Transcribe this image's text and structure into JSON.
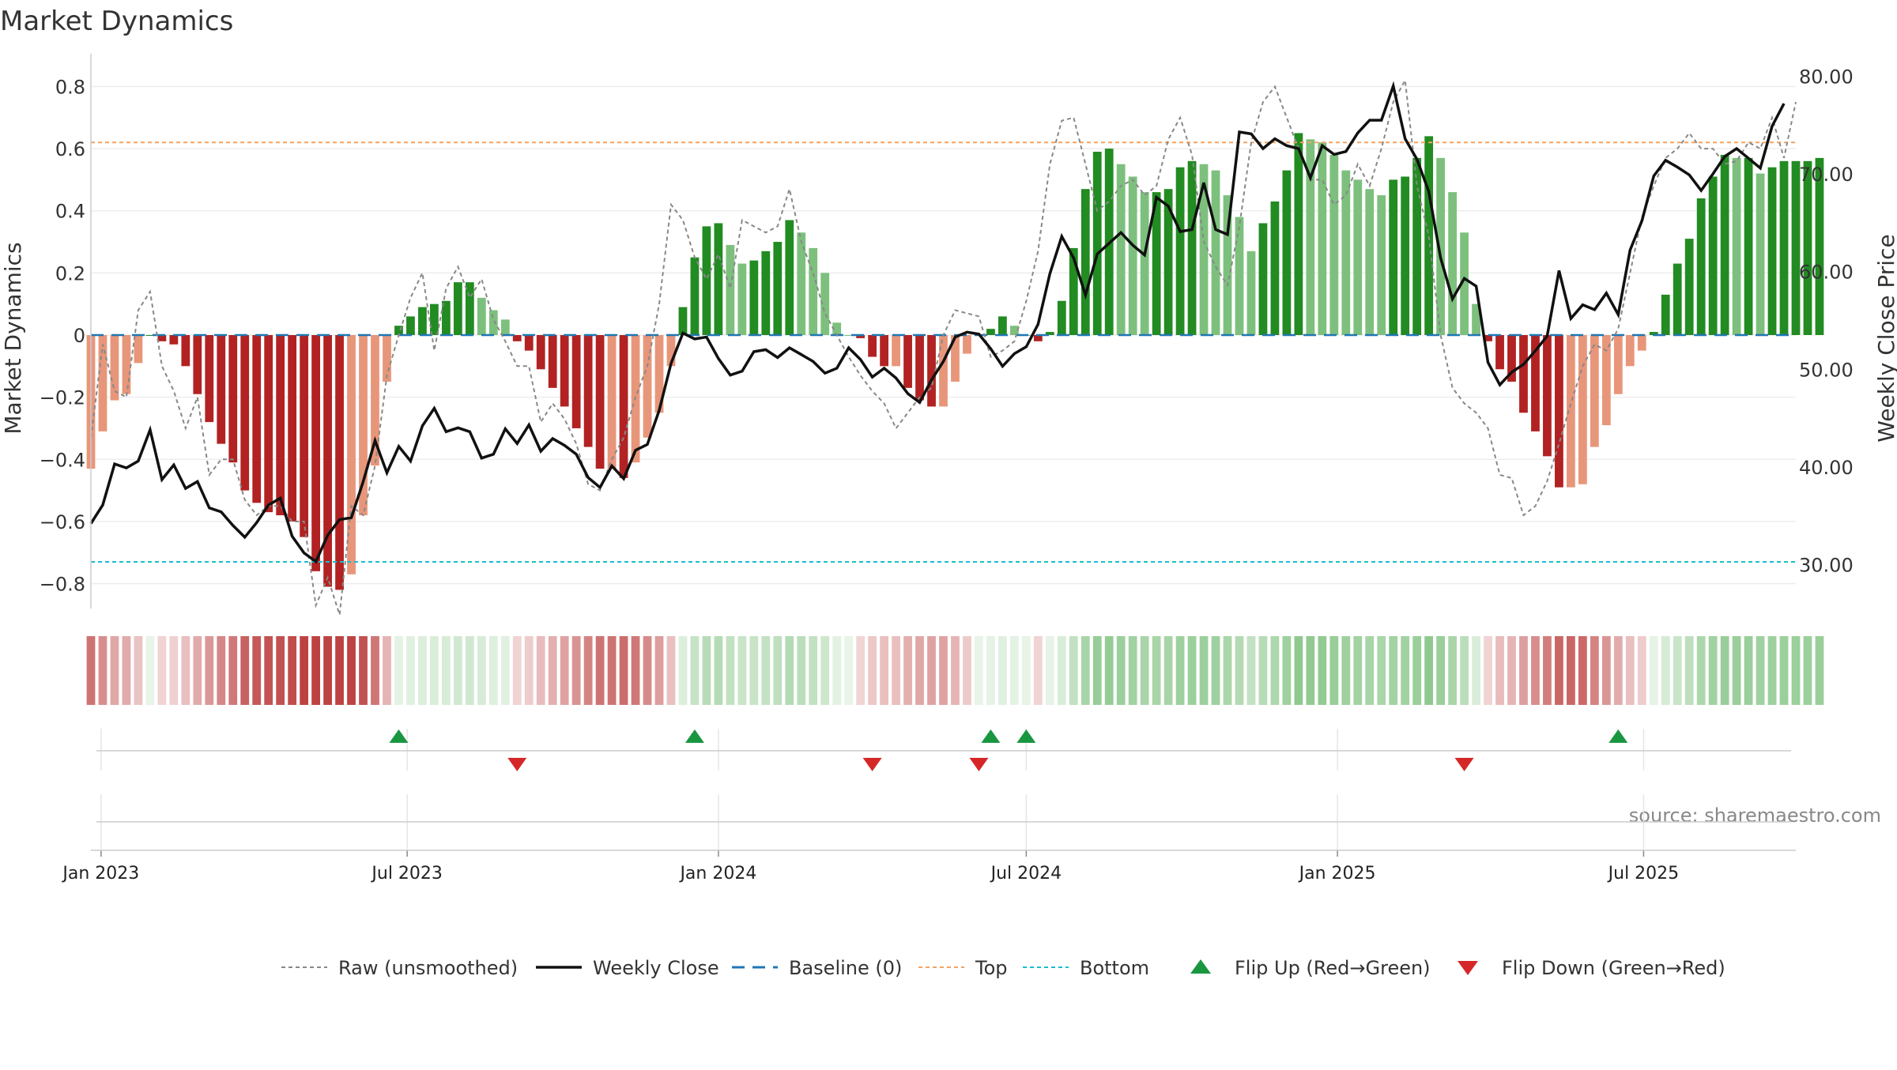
{
  "title": "Market Dynamics",
  "source": "source: sharemaestro.com",
  "left_axis": {
    "label": "Market Dynamics",
    "ylim": [
      -0.88,
      0.88
    ],
    "ticks": [
      0.8,
      0.6,
      0.4,
      0.2,
      0,
      -0.2,
      -0.4,
      -0.6,
      -0.8
    ],
    "tick_labels": [
      "0.8",
      "0.6",
      "0.4",
      "0.2",
      "0",
      "−0.2",
      "−0.4",
      "−0.6",
      "−0.8"
    ]
  },
  "right_axis": {
    "label": "Weekly Close Price",
    "ylim": [
      25.5,
      81.5
    ],
    "ticks": [
      80,
      70,
      60,
      50,
      40,
      30
    ],
    "tick_labels": [
      "80.00",
      "70.00",
      "60.00",
      "50.00",
      "40.00",
      "30.00"
    ]
  },
  "x_axis": {
    "start": "2022-12-26",
    "end": "2025-09-29",
    "ticks": [
      "2023-01-01",
      "2023-07-01",
      "2024-01-01",
      "2024-07-01",
      "2025-01-01",
      "2025-07-01"
    ],
    "tick_labels": [
      "Jan 2023",
      "Jul 2023",
      "Jan 2024",
      "Jul 2024",
      "Jan 2025",
      "Jul 2025"
    ]
  },
  "reference_lines": {
    "top": 0.62,
    "bottom": -0.73,
    "baseline": 0
  },
  "colors": {
    "strong_red": "#b22222",
    "weak_red": "#e8967a",
    "strong_green": "#228b22",
    "weak_green": "#7dc07d",
    "raw": "#888888",
    "close": "#111111",
    "baseline": "#1f77b4",
    "top": "#f4a261",
    "bottom": "#17becf",
    "flip_up": "#1a9641",
    "flip_down": "#d62728"
  },
  "chart_data": {
    "type": "bar",
    "series": [
      {
        "name": "Market Dynamics (smoothed)",
        "kind": "bar",
        "start_date": "2022-12-26",
        "interval_days": 7,
        "values": [
          -0.43,
          -0.31,
          -0.21,
          -0.19,
          -0.09,
          0.0,
          -0.02,
          -0.03,
          -0.1,
          -0.19,
          -0.28,
          -0.35,
          -0.41,
          -0.5,
          -0.54,
          -0.57,
          -0.58,
          -0.6,
          -0.65,
          -0.76,
          -0.81,
          -0.82,
          -0.77,
          -0.58,
          -0.42,
          -0.15,
          0.03,
          0.06,
          0.09,
          0.1,
          0.11,
          0.17,
          0.17,
          0.12,
          0.08,
          0.05,
          -0.02,
          -0.05,
          -0.11,
          -0.17,
          -0.23,
          -0.3,
          -0.36,
          -0.43,
          -0.43,
          -0.46,
          -0.41,
          -0.33,
          -0.25,
          -0.1,
          0.09,
          0.25,
          0.35,
          0.36,
          0.29,
          0.23,
          0.24,
          0.27,
          0.3,
          0.37,
          0.33,
          0.28,
          0.2,
          0.04,
          0.0,
          -0.01,
          -0.07,
          -0.1,
          -0.1,
          -0.17,
          -0.21,
          -0.23,
          -0.23,
          -0.15,
          -0.06,
          0.0,
          0.02,
          0.06,
          0.03,
          0.0,
          -0.02,
          0.01,
          0.11,
          0.28,
          0.47,
          0.59,
          0.6,
          0.55,
          0.51,
          0.46,
          0.46,
          0.47,
          0.54,
          0.56,
          0.55,
          0.53,
          0.45,
          0.38,
          0.27,
          0.36,
          0.43,
          0.53,
          0.65,
          0.63,
          0.62,
          0.58,
          0.53,
          0.5,
          0.47,
          0.45,
          0.5,
          0.51,
          0.57,
          0.64,
          0.57,
          0.46,
          0.33,
          0.1,
          -0.02,
          -0.11,
          -0.15,
          -0.25,
          -0.31,
          -0.39,
          -0.49,
          -0.49,
          -0.48,
          -0.36,
          -0.29,
          -0.19,
          -0.1,
          -0.05,
          0.01,
          0.13,
          0.23,
          0.31,
          0.44,
          0.51,
          0.58,
          0.57,
          0.57,
          0.52,
          0.54,
          0.56,
          0.56,
          0.56,
          0.57
        ]
      },
      {
        "name": "Raw (unsmoothed)",
        "kind": "line",
        "start_date": "2022-12-26",
        "interval_days": 7,
        "values": [
          -0.33,
          -0.03,
          -0.18,
          -0.2,
          0.08,
          0.14,
          -0.1,
          -0.18,
          -0.3,
          -0.2,
          -0.45,
          -0.4,
          -0.4,
          -0.53,
          -0.58,
          -0.55,
          -0.55,
          -0.6,
          -0.6,
          -0.87,
          -0.78,
          -0.9,
          -0.55,
          -0.58,
          -0.42,
          -0.13,
          0.0,
          0.12,
          0.2,
          -0.05,
          0.15,
          0.22,
          0.12,
          0.18,
          0.05,
          -0.02,
          -0.1,
          -0.1,
          -0.28,
          -0.22,
          -0.27,
          -0.35,
          -0.48,
          -0.5,
          -0.4,
          -0.33,
          -0.2,
          -0.1,
          0.1,
          0.42,
          0.37,
          0.25,
          0.18,
          0.26,
          0.15,
          0.37,
          0.35,
          0.33,
          0.35,
          0.47,
          0.3,
          0.2,
          0.07,
          0.0,
          -0.07,
          -0.13,
          -0.18,
          -0.22,
          -0.3,
          -0.25,
          -0.2,
          -0.17,
          0.0,
          0.08,
          0.07,
          0.06,
          -0.07,
          -0.05,
          -0.02,
          0.11,
          0.27,
          0.55,
          0.69,
          0.7,
          0.55,
          0.4,
          0.43,
          0.48,
          0.5,
          0.45,
          0.48,
          0.63,
          0.7,
          0.58,
          0.3,
          0.22,
          0.16,
          0.35,
          0.62,
          0.75,
          0.8,
          0.7,
          0.6,
          0.5,
          0.5,
          0.42,
          0.45,
          0.55,
          0.48,
          0.6,
          0.75,
          0.82,
          0.48,
          0.32,
          0.0,
          -0.17,
          -0.22,
          -0.25,
          -0.3,
          -0.45,
          -0.46,
          -0.58,
          -0.55,
          -0.47,
          -0.35,
          -0.22,
          -0.1,
          -0.03,
          -0.05,
          0.02,
          0.2,
          0.38,
          0.48,
          0.57,
          0.6,
          0.65,
          0.6,
          0.6,
          0.55,
          0.56,
          0.62,
          0.6,
          0.7,
          0.57,
          0.75
        ]
      },
      {
        "name": "Weekly Close",
        "kind": "line",
        "axis": "right",
        "start_date": "2022-12-26",
        "interval_days": 7,
        "values": [
          34.2,
          36.1,
          40.3,
          39.9,
          40.6,
          43.8,
          38.7,
          40.2,
          37.8,
          38.5,
          35.8,
          35.4,
          34.0,
          32.8,
          34.3,
          36.1,
          36.8,
          32.9,
          31.2,
          30.3,
          33.0,
          34.6,
          34.8,
          38.5,
          42.7,
          39.4,
          42.1,
          40.6,
          44.2,
          46.0,
          43.6,
          44.0,
          43.6,
          40.9,
          41.3,
          43.9,
          42.4,
          44.3,
          41.6,
          42.9,
          42.2,
          41.3,
          38.9,
          37.9,
          40.1,
          38.8,
          41.7,
          42.3,
          45.8,
          50.6,
          53.7,
          53.1,
          53.3,
          51.1,
          49.4,
          49.8,
          51.8,
          52.0,
          51.2,
          52.2,
          51.5,
          50.8,
          49.6,
          50.1,
          52.2,
          51.0,
          49.2,
          50.1,
          49.1,
          47.5,
          46.6,
          48.9,
          50.8,
          53.3,
          53.8,
          53.6,
          52.1,
          50.3,
          51.6,
          52.3,
          54.6,
          59.8,
          63.6,
          61.4,
          57.6,
          61.8,
          62.9,
          64.0,
          62.7,
          61.7,
          67.6,
          66.7,
          64.1,
          64.3,
          69.1,
          64.3,
          63.8,
          74.3,
          74.1,
          72.6,
          73.6,
          72.9,
          72.6,
          69.6,
          72.9,
          72.0,
          72.3,
          74.2,
          75.5,
          75.5,
          79.0,
          73.6,
          71.5,
          68.2,
          61.4,
          57.2,
          59.3,
          58.5,
          50.7,
          48.4,
          49.7,
          50.5,
          51.9,
          53.4,
          60.1,
          55.2,
          56.6,
          56.1,
          57.8,
          55.6,
          62.2,
          65.2,
          69.8,
          71.4,
          70.7,
          69.9,
          68.3,
          70.0,
          71.8,
          72.6,
          71.6,
          70.6,
          74.9,
          77.2
        ]
      }
    ],
    "top": 0.62,
    "bottom": -0.73,
    "baseline": 0,
    "flip_up_dates": [
      "2023-06-26",
      "2023-12-18",
      "2024-06-10",
      "2024-07-01",
      "2025-06-16"
    ],
    "flip_down_dates": [
      "2023-09-04",
      "2024-04-01",
      "2024-06-03",
      "2025-03-17"
    ],
    "legend": {
      "position": "bottom-center",
      "entries": [
        "Raw (unsmoothed)",
        "Weekly Close",
        "Baseline (0)",
        "Top",
        "Bottom",
        "Flip Up (Red→Green)",
        "Flip Down (Green→Red)"
      ]
    }
  }
}
